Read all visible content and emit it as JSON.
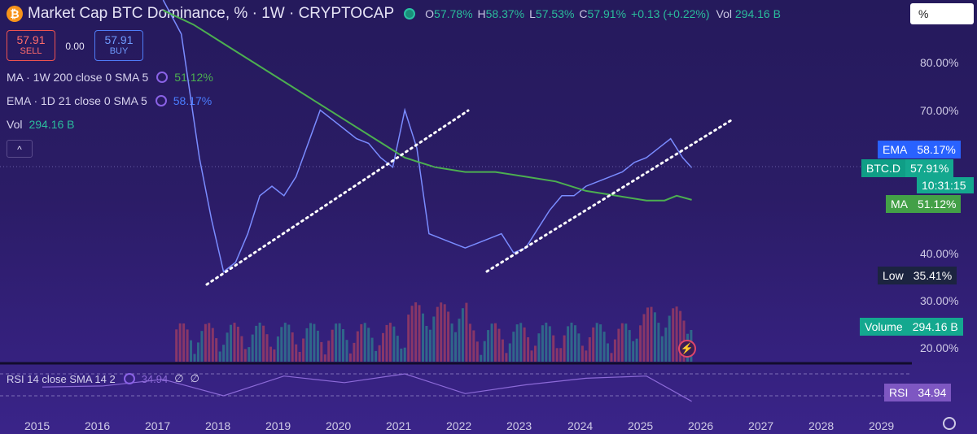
{
  "header": {
    "logo_glyph": "₿",
    "title": "Market Cap BTC Dominance, % · 1W · CRYPTOCAP",
    "ohlc": [
      {
        "k": "O",
        "v": "57.78%"
      },
      {
        "k": "H",
        "v": "58.37%"
      },
      {
        "k": "L",
        "v": "57.53%"
      },
      {
        "k": "C",
        "v": "57.91%"
      }
    ],
    "change": "+0.13 (+0.22%)",
    "vol_label": "Vol",
    "vol_value": "294.16 B",
    "unit_box": "%"
  },
  "trade": {
    "sell_price": "57.91",
    "sell_label": "SELL",
    "spread": "0.00",
    "buy_price": "57.91",
    "buy_label": "BUY"
  },
  "indicators": {
    "ma_label": "MA · 1W 200 close 0 SMA 5",
    "ma_value": "51.12%",
    "ema_label": "EMA · 1D 21 close 0 SMA 5",
    "ema_value": "58.17%",
    "vol_label": "Vol",
    "vol_value": "294.16 B",
    "collapse_glyph": "^"
  },
  "y_axis": [
    "80.00%",
    "70.00%",
    "40.00%",
    "30.00%",
    "20.00%"
  ],
  "tags": {
    "ema": {
      "name": "EMA",
      "value": "58.17%"
    },
    "btcd": {
      "name": "BTC.D",
      "value": "57.91%",
      "timer": "10:31:15"
    },
    "ma": {
      "name": "MA",
      "value": "51.12%"
    },
    "low": {
      "name": "Low",
      "value": "35.41%"
    },
    "volume": {
      "name": "Volume",
      "value": "294.16 B"
    },
    "rsi": {
      "name": "RSI",
      "value": "34.94"
    }
  },
  "rsi_panel": {
    "label": "RSI 14 close SMA 14 2",
    "value": "34.94",
    "extra1": "∅",
    "extra2": "∅"
  },
  "x_axis": [
    "2015",
    "2016",
    "2017",
    "2018",
    "2019",
    "2020",
    "2021",
    "2022",
    "2023",
    "2024",
    "2025",
    "2026",
    "2027",
    "2028",
    "2029"
  ],
  "colors": {
    "up": "#2bbd9c",
    "down": "#ef5350",
    "ma": "#4caf50",
    "ema": "#2962ff",
    "rsi": "#7e57c2",
    "trend": "#ffffff"
  },
  "chart_data": {
    "type": "line",
    "x": [
      2017.0,
      2017.3,
      2017.6,
      2017.8,
      2018.0,
      2018.2,
      2018.4,
      2018.6,
      2018.8,
      2019.0,
      2019.2,
      2019.4,
      2019.6,
      2019.8,
      2020.0,
      2020.2,
      2020.4,
      2020.6,
      2020.8,
      2021.0,
      2021.2,
      2021.4,
      2021.6,
      2021.8,
      2022.0,
      2022.2,
      2022.4,
      2022.6,
      2022.8,
      2023.0,
      2023.2,
      2023.4,
      2023.6,
      2023.8,
      2024.0,
      2024.2,
      2024.4,
      2024.6,
      2024.8,
      2025.0,
      2025.2,
      2025.4,
      2025.6,
      2025.75
    ],
    "y": [
      95,
      86,
      60,
      47,
      36,
      38,
      44,
      52,
      54,
      52,
      56,
      63,
      70,
      68,
      66,
      64,
      63,
      60,
      58,
      70,
      62,
      44,
      43,
      42,
      41,
      42,
      43,
      44,
      40,
      41,
      45,
      49,
      52,
      52,
      54,
      55,
      56,
      57,
      59,
      60,
      62,
      64,
      60,
      57.91
    ],
    "series": [
      {
        "name": "MA",
        "x": [
          2017.0,
          2017.5,
          2018.0,
          2018.5,
          2019.0,
          2019.5,
          2020.0,
          2020.5,
          2021.0,
          2021.5,
          2022.0,
          2022.5,
          2023.0,
          2023.5,
          2024.0,
          2024.5,
          2025.0,
          2025.3,
          2025.5,
          2025.75
        ],
        "values": [
          91,
          88,
          84,
          80,
          76,
          72,
          68,
          64,
          60,
          58,
          57,
          57,
          56,
          55,
          53,
          52,
          51,
          51,
          52,
          51.12
        ]
      },
      {
        "name": "RSI",
        "x": [
          2015,
          2016,
          2017,
          2018,
          2019,
          2020,
          2021,
          2022,
          2023,
          2024,
          2025,
          2025.75
        ],
        "values": [
          48,
          49,
          55,
          40,
          58,
          52,
          60,
          42,
          50,
          56,
          58,
          34.94
        ]
      }
    ],
    "ylim": [
      15,
      90
    ],
    "xlim": [
      2014.7,
      2029.3
    ]
  }
}
